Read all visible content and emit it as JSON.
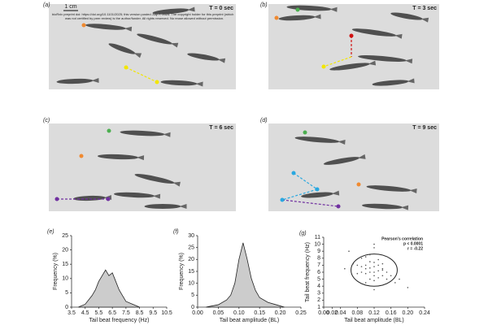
{
  "panels": [
    {
      "label": "(a)",
      "time": "T = 0 sec",
      "scale_bar": "1 cm"
    },
    {
      "label": "(b)",
      "time": "T = 3 sec"
    },
    {
      "label": "(c)",
      "time": "T = 6 sec"
    },
    {
      "label": "(d)",
      "time": "T = 9 sec"
    }
  ],
  "preprint_notice": [
    "bioRxiv preprint doi: https://doi.org/10.1101/2025; this version posted July 7, 2025. The copyright holder for this preprint (which",
    "was not certified by peer review) is the author/funder. All rights reserved. No reuse allowed without permission."
  ],
  "chart_data": [
    {
      "type": "area",
      "label": "(e)",
      "x_label": "Tail beat frequency (Hz)",
      "y_label": "Frequency (%)",
      "x": [
        4.0,
        4.5,
        5.0,
        5.25,
        5.5,
        5.75,
        6.0,
        6.25,
        6.5,
        6.75,
        7.0,
        7.25,
        7.5,
        8.0,
        8.5
      ],
      "values": [
        0,
        1,
        4,
        6,
        9,
        11,
        13,
        11,
        12,
        9,
        6,
        4,
        2,
        1,
        0
      ],
      "color": "#cccccc",
      "xlim": [
        3.5,
        10.5
      ],
      "xticks": [
        3.5,
        4.5,
        5.5,
        6.5,
        7.5,
        8.5,
        9.5,
        10.5
      ],
      "ylim": [
        0,
        25
      ],
      "yticks": [
        0,
        5,
        10,
        15,
        20,
        25
      ]
    },
    {
      "type": "area",
      "label": "(f)",
      "x_label": "Tail beat amplitude (BL)",
      "y_label": "Frequency (%)",
      "x": [
        0.02,
        0.05,
        0.07,
        0.08,
        0.09,
        0.1,
        0.11,
        0.12,
        0.13,
        0.14,
        0.15,
        0.17,
        0.19,
        0.21
      ],
      "values": [
        0,
        1,
        3,
        5,
        10,
        20,
        27,
        20,
        12,
        7,
        4,
        2,
        1,
        0
      ],
      "color": "#cccccc",
      "xlim": [
        0,
        0.25
      ],
      "xticks": [
        {
          "value": 0,
          "label": "0.00"
        },
        0.05,
        {
          "value": 0.1,
          "label": "0.10"
        },
        0.15,
        {
          "value": 0.2,
          "label": "0.20"
        },
        0.25
      ],
      "ylim": [
        0,
        30
      ],
      "yticks": [
        0,
        5,
        10,
        15,
        20,
        25,
        30
      ]
    },
    {
      "type": "scatter",
      "label": "(g)",
      "x_label": "Tail beat amplitude (BL)",
      "y_label": "Tail beat frequency (Hz)",
      "annotations": [
        "Pearson's correlation",
        "p < 0.0001",
        "r = -0.22"
      ],
      "x": [
        0.08,
        0.1,
        0.12,
        0.14,
        0.11,
        0.09,
        0.13,
        0.15,
        0.12,
        0.1,
        0.07,
        0.16,
        0.12,
        0.11,
        0.13,
        0.09,
        0.14,
        0.1,
        0.12,
        0.17,
        0.06,
        0.12,
        0.11,
        0.13,
        0.15,
        0.1,
        0.08,
        0.14,
        0.12,
        0.09,
        0.18,
        0.11,
        0.13,
        0.1,
        0.12,
        0.05,
        0.2,
        0.12,
        0.14,
        0.11
      ],
      "values": [
        7,
        6.5,
        6,
        5.5,
        7.5,
        8,
        6.2,
        5,
        6.8,
        5.8,
        7.2,
        5.5,
        4.8,
        8.5,
        7,
        6,
        6.5,
        7,
        5.5,
        4.5,
        9,
        9.5,
        6,
        7.8,
        6,
        4.5,
        5.8,
        7.2,
        3.5,
        6.8,
        5,
        6.6,
        5.2,
        8.2,
        7.4,
        6.5,
        3.8,
        10,
        6.3,
        5
      ],
      "color": "#555555",
      "xlim": [
        0,
        0.24
      ],
      "xticks": [
        {
          "value": 0,
          "label": "0.00"
        },
        0.02,
        0.04,
        0.08,
        0.12,
        0.16,
        {
          "value": 0.2,
          "label": "0.20"
        },
        0.24
      ],
      "ylim": [
        1,
        11
      ],
      "yticks": [
        1,
        2,
        3,
        4,
        5,
        6,
        7,
        8,
        9,
        10,
        11
      ]
    }
  ]
}
